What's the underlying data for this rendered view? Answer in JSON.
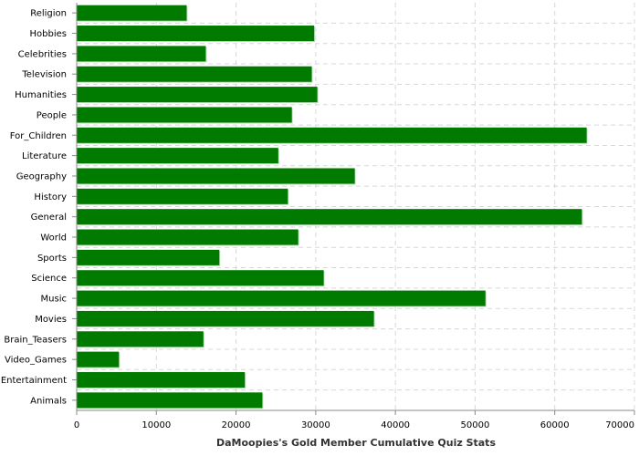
{
  "colors": {
    "bar": "#007b00",
    "bar_shadow": "#b9dcb9",
    "grid": "#d8d8d8",
    "axis": "#888888"
  },
  "chart_data": {
    "type": "bar",
    "orientation": "horizontal",
    "title": "",
    "xlabel": "DaMoopies's Gold Member Cumulative Quiz Stats",
    "ylabel": "",
    "xlim": [
      0,
      70000
    ],
    "xticks": [
      0,
      10000,
      20000,
      30000,
      40000,
      50000,
      60000,
      70000
    ],
    "grid": true,
    "legend": "none",
    "categories": [
      "Religion",
      "Hobbies",
      "Celebrities",
      "Television",
      "Humanities",
      "People",
      "For_Children",
      "Literature",
      "Geography",
      "History",
      "General",
      "World",
      "Sports",
      "Science",
      "Music",
      "Movies",
      "Brain_Teasers",
      "Video_Games",
      "Entertainment",
      "Animals"
    ],
    "values": [
      13800,
      29800,
      16200,
      29500,
      30200,
      27000,
      64000,
      25300,
      34900,
      26500,
      63400,
      27800,
      17900,
      31000,
      51300,
      37300,
      15900,
      5300,
      21100,
      23300
    ]
  }
}
